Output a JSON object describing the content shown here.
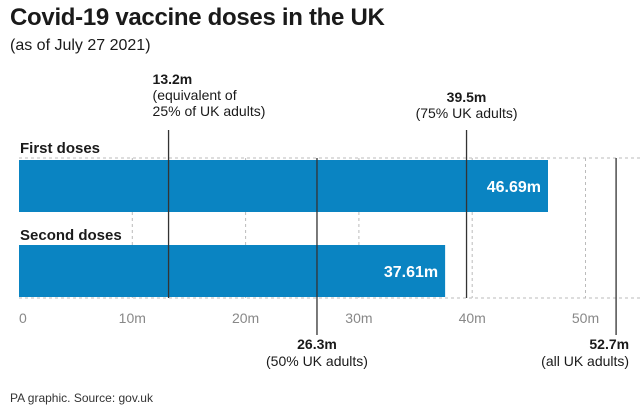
{
  "header": {
    "title": "Covid-19 vaccine doses in the UK",
    "subtitle": "(as of July 27 2021)"
  },
  "footer": {
    "source": "PA graphic. Source: gov.uk"
  },
  "chart_data": {
    "type": "bar",
    "orientation": "horizontal",
    "title": "Covid-19 vaccine doses in the UK",
    "subtitle": "(as of July 27 2021)",
    "categories": [
      "First doses",
      "Second doses"
    ],
    "values": [
      46.69,
      37.61
    ],
    "value_labels": [
      "46.69m",
      "37.61m"
    ],
    "xlim": [
      0,
      55
    ],
    "xticks": [
      0,
      10,
      20,
      30,
      40,
      50
    ],
    "xtick_labels": [
      "0",
      "10m",
      "20m",
      "30m",
      "40m",
      "50m"
    ],
    "grid": true,
    "bar_color": "#0a84c2",
    "reference_lines": [
      {
        "value": 13.2,
        "position": "top",
        "lines": [
          "13.2m",
          "(equivalent of",
          "25% of UK adults)"
        ]
      },
      {
        "value": 39.5,
        "position": "top",
        "lines": [
          "39.5m",
          "(75% UK adults)"
        ]
      },
      {
        "value": 26.3,
        "position": "bottom",
        "lines": [
          "26.3m",
          "(50% UK adults)"
        ]
      },
      {
        "value": 52.7,
        "position": "bottom",
        "lines": [
          "52.7m",
          "(all UK adults)"
        ]
      }
    ]
  }
}
